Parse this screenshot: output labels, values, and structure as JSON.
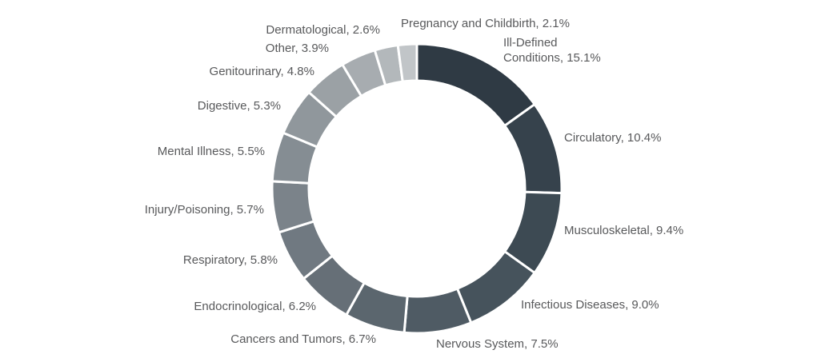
{
  "chart_data": {
    "type": "pie",
    "subtype": "donut",
    "categories": [
      "Ill-Defined Conditions",
      "Circulatory",
      "Musculoskeletal",
      "Infectious Diseases",
      "Nervous System",
      "Cancers and Tumors",
      "Endocrinological",
      "Respiratory",
      "Injury/Poisoning",
      "Mental Illness",
      "Digestive",
      "Genitourinary",
      "Other",
      "Dermatological",
      "Pregnancy and Childbirth"
    ],
    "values": [
      15.1,
      10.4,
      9.4,
      9.0,
      7.5,
      6.7,
      6.2,
      5.8,
      5.7,
      5.5,
      5.3,
      4.8,
      3.9,
      2.6,
      2.1
    ],
    "slice_labels": [
      [
        "Ill-Defined",
        "Conditions, 15.1%"
      ],
      [
        "Circulatory, 10.4%"
      ],
      [
        "Musculoskeletal, 9.4%"
      ],
      [
        "Infectious Diseases, 9.0%"
      ],
      [
        "Nervous System, 7.5%"
      ],
      [
        "Cancers and Tumors, 6.7%"
      ],
      [
        "Endocrinological, 6.2%"
      ],
      [
        "Respiratory, 5.8%"
      ],
      [
        "Injury/Poisoning, 5.7%"
      ],
      [
        "Mental Illness, 5.5%"
      ],
      [
        "Digestive, 5.3%"
      ],
      [
        "Genitourinary, 4.8%"
      ],
      [
        "Other, 3.9%"
      ],
      [
        "Dermatological, 2.6%"
      ],
      [
        "Pregnancy and Childbirth, 2.1%"
      ]
    ],
    "colors": [
      "#2f3a44",
      "#36424c",
      "#3d4a53",
      "#46535c",
      "#4f5b64",
      "#5b666e",
      "#666f77",
      "#707981",
      "#7b838a",
      "#858d93",
      "#90979c",
      "#9ba1a5",
      "#a7acb0",
      "#b3b8bb",
      "#c1c5c8"
    ],
    "start": "12 o'clock",
    "direction": "clockwise",
    "legend": "none"
  }
}
